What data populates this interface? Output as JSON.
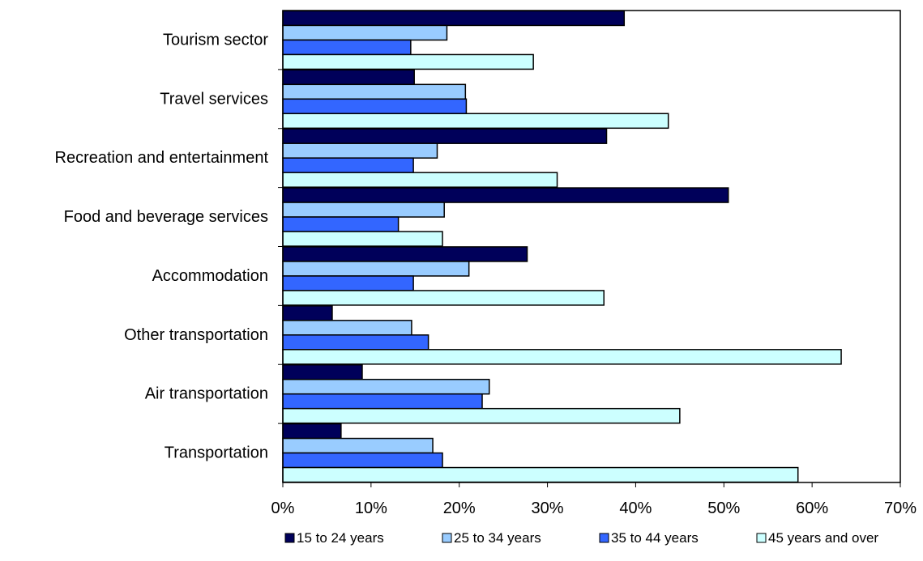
{
  "chart_data": {
    "type": "bar",
    "orientation": "horizontal",
    "categories": [
      "Tourism sector",
      "Travel services",
      "Recreation and entertainment",
      "Food and beverage services",
      "Accommodation",
      "Other transportation",
      "Air transportation",
      "Transportation"
    ],
    "series": [
      {
        "name": "15 to 24 years",
        "color": "#00005a",
        "values": [
          38.7,
          14.9,
          36.7,
          50.5,
          27.7,
          5.6,
          9.0,
          6.6
        ]
      },
      {
        "name": "25 to 34 years",
        "color": "#99ccff",
        "values": [
          18.6,
          20.7,
          17.5,
          18.3,
          21.1,
          14.6,
          23.4,
          17.0
        ]
      },
      {
        "name": "35 to 44 years",
        "color": "#3366ff",
        "values": [
          14.5,
          20.8,
          14.8,
          13.1,
          14.8,
          16.5,
          22.6,
          18.1
        ]
      },
      {
        "name": "45 years and over",
        "color": "#ccffff",
        "values": [
          28.4,
          43.7,
          31.1,
          18.1,
          36.4,
          63.3,
          45.0,
          58.4
        ]
      }
    ],
    "xlim": [
      0,
      70
    ],
    "x_ticks": [
      "0%",
      "10%",
      "20%",
      "30%",
      "40%",
      "50%",
      "60%",
      "70%"
    ],
    "grid": false,
    "legend_position": "bottom"
  }
}
